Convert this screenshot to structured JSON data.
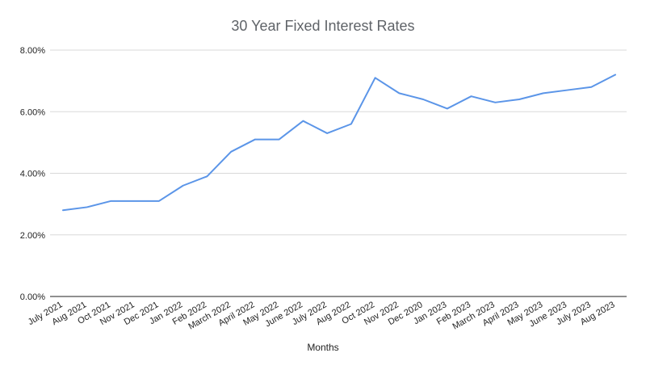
{
  "chart_data": {
    "type": "line",
    "title": "30 Year Fixed Interest Rates",
    "xlabel": "Months",
    "ylabel": "",
    "ylim": [
      0,
      8
    ],
    "y_ticks": [
      "0.00%",
      "2.00%",
      "4.00%",
      "6.00%",
      "8.00%"
    ],
    "grid": true,
    "legend": "none",
    "categories": [
      "July 2021",
      "Aug 2021",
      "Oct 2021",
      "Nov 2021",
      "Dec 2021",
      "Jan 2022",
      "Feb 2022",
      "March 2022",
      "April 2022",
      "May 2022",
      "June 2022",
      "July 2022",
      "Aug 2022",
      "Oct 2022",
      "Nov 2022",
      "Dec 2020",
      "Jan 2023",
      "Feb 2023",
      "March 2023",
      "April 2023",
      "May 2023",
      "June 2023",
      "July 2023",
      "Aug 2023"
    ],
    "series": [
      {
        "values": [
          2.8,
          2.9,
          3.1,
          3.1,
          3.1,
          3.6,
          3.9,
          4.7,
          5.1,
          5.1,
          5.7,
          5.3,
          5.6,
          7.1,
          6.6,
          6.4,
          6.1,
          6.5,
          6.3,
          6.4,
          6.6,
          6.7,
          6.8,
          7.2
        ],
        "color": "#5b95e8"
      }
    ],
    "gridline_color": "#d9d9d9",
    "axis_color": "#222222"
  }
}
